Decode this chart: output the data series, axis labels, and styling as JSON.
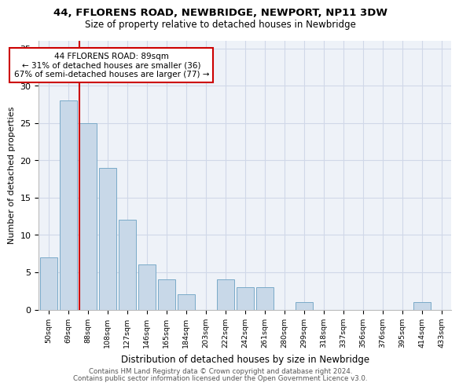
{
  "title": "44, FFLORENS ROAD, NEWBRIDGE, NEWPORT, NP11 3DW",
  "subtitle": "Size of property relative to detached houses in Newbridge",
  "xlabel": "Distribution of detached houses by size in Newbridge",
  "ylabel": "Number of detached properties",
  "categories": [
    "50sqm",
    "69sqm",
    "88sqm",
    "108sqm",
    "127sqm",
    "146sqm",
    "165sqm",
    "184sqm",
    "203sqm",
    "222sqm",
    "242sqm",
    "261sqm",
    "280sqm",
    "299sqm",
    "318sqm",
    "337sqm",
    "356sqm",
    "376sqm",
    "395sqm",
    "414sqm",
    "433sqm"
  ],
  "values": [
    7,
    28,
    25,
    19,
    12,
    6,
    4,
    2,
    0,
    4,
    3,
    3,
    0,
    1,
    0,
    0,
    0,
    0,
    0,
    1,
    0
  ],
  "bar_color": "#c8d8e8",
  "bar_edge_color": "#7aaac8",
  "highlight_line_index": 2,
  "highlight_color": "#cc0000",
  "annotation_line1": "44 FFLORENS ROAD: 89sqm",
  "annotation_line2": "← 31% of detached houses are smaller (36)",
  "annotation_line3": "67% of semi-detached houses are larger (77) →",
  "annotation_box_color": "#ffffff",
  "annotation_box_edge": "#cc0000",
  "yticks": [
    0,
    5,
    10,
    15,
    20,
    25,
    30,
    35
  ],
  "ylim": [
    0,
    36
  ],
  "grid_color": "#d0d8e8",
  "background_color": "#eef2f8",
  "footer_line1": "Contains HM Land Registry data © Crown copyright and database right 2024.",
  "footer_line2": "Contains public sector information licensed under the Open Government Licence v3.0."
}
